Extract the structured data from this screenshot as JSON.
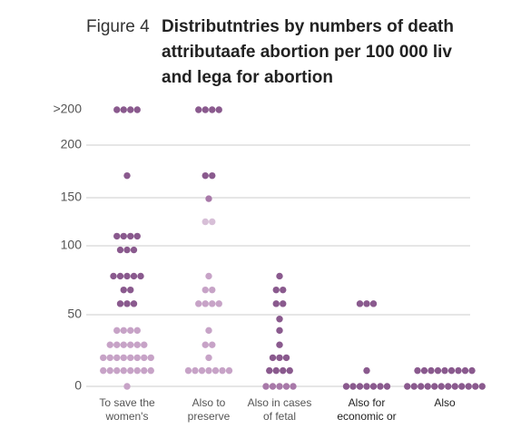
{
  "chart_data": {
    "type": "dot",
    "figure_label": "Figure 4",
    "title": [
      "Distributntries by numbers of death",
      "attributaafe abortion per 100 000 liv",
      "and lega for abortion"
    ],
    "categories": [
      [
        "To save the",
        "women's"
      ],
      [
        "Also to",
        "preserve"
      ],
      [
        "Also in cases",
        "of fetal"
      ],
      [
        "Also for",
        "economic or"
      ],
      [
        "Also"
      ]
    ],
    "yticks": [
      0,
      50,
      100,
      150,
      200,
      {
        "value": 250,
        "label": ">200"
      }
    ],
    "ylim": [
      0,
      250
    ],
    "grid": true,
    "groups": [
      [
        {
          "value": 250,
          "count": 4,
          "color": "#8a5a8e"
        },
        {
          "value": 171,
          "count": 1,
          "color": "#8a5a8e"
        },
        {
          "value": 110,
          "count": 4,
          "color": "#8a5a8e"
        },
        {
          "value": 97,
          "count": 3,
          "color": "#8a5a8e"
        },
        {
          "value": 78,
          "count": 5,
          "color": "#8a5a8e"
        },
        {
          "value": 68,
          "count": 2,
          "color": "#8a5a8e"
        },
        {
          "value": 58,
          "count": 3,
          "color": "#8a5a8e"
        },
        {
          "value": 39,
          "count": 4,
          "color": "#c7a3c7"
        },
        {
          "value": 29,
          "count": 6,
          "color": "#c7a3c7"
        },
        {
          "value": 20,
          "count": 8,
          "color": "#c7a3c7"
        },
        {
          "value": 11,
          "count": 8,
          "color": "#c7a3c7"
        },
        {
          "value": 0,
          "count": 1,
          "color": "#c7a3c7"
        }
      ],
      [
        {
          "value": 250,
          "count": 4,
          "color": "#8a5a8e"
        },
        {
          "value": 171,
          "count": 2,
          "color": "#8a5a8e"
        },
        {
          "value": 149,
          "count": 1,
          "color": "#a879a9"
        },
        {
          "value": 125,
          "count": 2,
          "color": "#d7bfd7"
        },
        {
          "value": 78,
          "count": 1,
          "color": "#c7a3c7"
        },
        {
          "value": 68,
          "count": 2,
          "color": "#c7a3c7"
        },
        {
          "value": 58,
          "count": 4,
          "color": "#c7a3c7"
        },
        {
          "value": 39,
          "count": 1,
          "color": "#c7a3c7"
        },
        {
          "value": 29,
          "count": 2,
          "color": "#c7a3c7"
        },
        {
          "value": 20,
          "count": 1,
          "color": "#c7a3c7"
        },
        {
          "value": 11,
          "count": 7,
          "color": "#c7a3c7"
        }
      ],
      [
        {
          "value": 78,
          "count": 1,
          "color": "#8a5a8e"
        },
        {
          "value": 68,
          "count": 2,
          "color": "#8a5a8e"
        },
        {
          "value": 58,
          "count": 2,
          "color": "#8a5a8e"
        },
        {
          "value": 47,
          "count": 1,
          "color": "#8a5a8e"
        },
        {
          "value": 39,
          "count": 1,
          "color": "#8a5a8e"
        },
        {
          "value": 29,
          "count": 1,
          "color": "#8a5a8e"
        },
        {
          "value": 20,
          "count": 3,
          "color": "#8a5a8e"
        },
        {
          "value": 11,
          "count": 4,
          "color": "#8a5a8e"
        },
        {
          "value": 0,
          "count": 5,
          "color": "#a879a9"
        }
      ],
      [
        {
          "value": 58,
          "count": 3,
          "color": "#8a5a8e"
        },
        {
          "value": 11,
          "count": 1,
          "color": "#8a5a8e"
        },
        {
          "value": 0,
          "count": 7,
          "color": "#8a5a8e"
        }
      ],
      [
        {
          "value": 11,
          "count": 9,
          "color": "#8a5a8e"
        },
        {
          "value": 0,
          "count": 12,
          "color": "#8a5a8e"
        }
      ]
    ]
  }
}
